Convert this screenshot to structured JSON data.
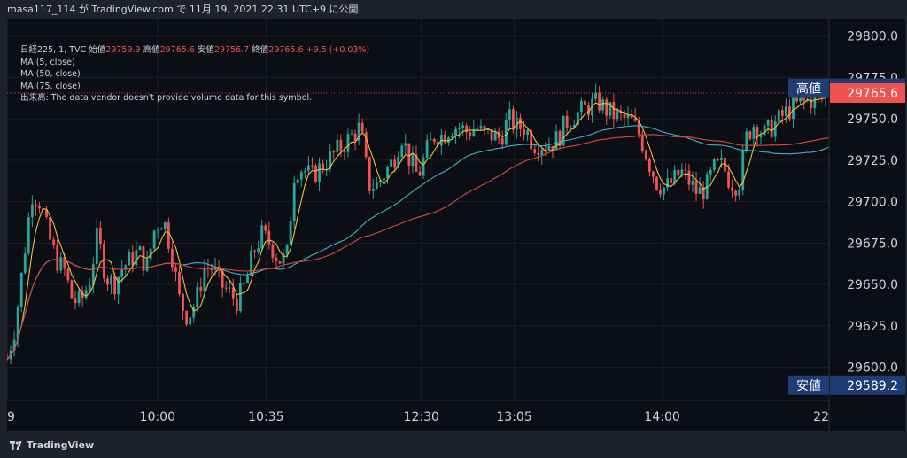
{
  "header": {
    "caption": "masa117_114 が TradingView.com で 11月 19, 2021 22:31 UTC+9 に公開"
  },
  "legend": {
    "symbol": "日経225, 1, TVC",
    "open_label": "始値",
    "open": "29759.9",
    "high_label": "高値",
    "high": "29765.6",
    "low_label": "安値",
    "low": "29756.7",
    "close_label": "終値",
    "close": "29765.6",
    "change": "+9.5 (+0.03%)",
    "ma5": "MA (5, close)",
    "ma50": "MA (50, close)",
    "ma75": "MA (75, close)",
    "volume_note": "出来高: The data vendor doesn't provide volume data for this symbol."
  },
  "footer": {
    "brand": "TradingView"
  },
  "chart_data": {
    "type": "line",
    "chart_kind": "candlestick-with-moving-averages",
    "symbol": "日経225, 1, TVC",
    "yrange": [
      29580,
      29810
    ],
    "y_ticks": [
      "29600.0",
      "29625.0",
      "29650.0",
      "29675.0",
      "29700.0",
      "29725.0",
      "29750.0",
      "29775.0",
      "29800.0"
    ],
    "x_tick_labels": [
      "9",
      "10:00",
      "10:35",
      "12:30",
      "13:05",
      "14:00",
      "22"
    ],
    "x_tick_positions": [
      0.0,
      0.183,
      0.315,
      0.504,
      0.617,
      0.797,
      1.0
    ],
    "price_range_high": {
      "label": "高値",
      "value": "29768.5"
    },
    "price_range_low": {
      "label": "安値",
      "value": "29589.2"
    },
    "last_price": "29765.6",
    "price_path": {
      "t": [
        0.0,
        0.01,
        0.02,
        0.03,
        0.04,
        0.05,
        0.06,
        0.07,
        0.08,
        0.09,
        0.1,
        0.11,
        0.12,
        0.13,
        0.14,
        0.15,
        0.16,
        0.17,
        0.18,
        0.19,
        0.2,
        0.21,
        0.22,
        0.23,
        0.24,
        0.25,
        0.26,
        0.27,
        0.28,
        0.29,
        0.3,
        0.31,
        0.32,
        0.33,
        0.34,
        0.35,
        0.36,
        0.37,
        0.38,
        0.39,
        0.4,
        0.41,
        0.42,
        0.43,
        0.44,
        0.45,
        0.46,
        0.47,
        0.48,
        0.49,
        0.5,
        0.51,
        0.52,
        0.53,
        0.54,
        0.55,
        0.56,
        0.57,
        0.58,
        0.59,
        0.6,
        0.61,
        0.62,
        0.63,
        0.64,
        0.65,
        0.66,
        0.67,
        0.68,
        0.69,
        0.7,
        0.71,
        0.72,
        0.73,
        0.74,
        0.75,
        0.76,
        0.77,
        0.78,
        0.79,
        0.8,
        0.81,
        0.82,
        0.83,
        0.84,
        0.85,
        0.86,
        0.87,
        0.88,
        0.89,
        0.9,
        0.91,
        0.92,
        0.93,
        0.94,
        0.95,
        0.96,
        0.97,
        0.98,
        0.99,
        1.0
      ],
      "close": [
        29605,
        29625,
        29665,
        29705,
        29700,
        29680,
        29665,
        29658,
        29640,
        29640,
        29652,
        29680,
        29655,
        29650,
        29660,
        29665,
        29670,
        29660,
        29685,
        29690,
        29670,
        29640,
        29630,
        29640,
        29660,
        29660,
        29650,
        29645,
        29640,
        29650,
        29670,
        29680,
        29675,
        29665,
        29665,
        29720,
        29720,
        29715,
        29720,
        29725,
        29730,
        29735,
        29740,
        29745,
        29710,
        29710,
        29718,
        29725,
        29740,
        29725,
        29715,
        29730,
        29740,
        29740,
        29745,
        29745,
        29742,
        29745,
        29740,
        29740,
        29738,
        29750,
        29745,
        29745,
        29735,
        29735,
        29735,
        29738,
        29748,
        29752,
        29755,
        29758,
        29760,
        29755,
        29752,
        29750,
        29748,
        29740,
        29725,
        29712,
        29708,
        29712,
        29718,
        29712,
        29705,
        29708,
        29720,
        29722,
        29712,
        29710,
        29740,
        29748,
        29740,
        29745,
        29750,
        29755,
        29758,
        29760,
        29762,
        29762,
        29765.6
      ]
    },
    "series": [
      {
        "name": "MA (5, close)",
        "color": "#e8c33a",
        "values": "5-period moving average of close"
      },
      {
        "name": "MA (50, close)",
        "color": "#3fb2c8",
        "values": "50-period moving average of close"
      },
      {
        "name": "MA (75, close)",
        "color": "#e0463c",
        "values": "75-period moving average of close"
      }
    ],
    "grid": true,
    "legend_position": "top-left"
  },
  "colors": {
    "up": "#26a69a",
    "down": "#ef5350",
    "background": "#0c0e15",
    "badge_blue": "#1f3d75",
    "badge_red": "#ef5350"
  }
}
